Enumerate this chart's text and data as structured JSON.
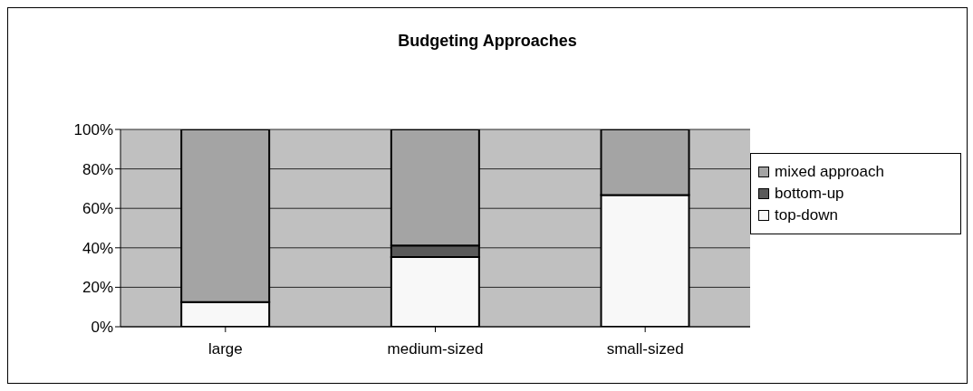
{
  "chart_data": {
    "type": "bar",
    "title": "Budgeting Approaches",
    "stacked": true,
    "categories": [
      "large",
      "medium-sized",
      "small-sized"
    ],
    "series": [
      {
        "name": "top-down",
        "color": "#f8f8f8",
        "values": [
          12.5,
          35.3,
          66.7
        ]
      },
      {
        "name": "bottom-up",
        "color": "#5a5a5a",
        "values": [
          0,
          5.9,
          0
        ]
      },
      {
        "name": "mixed approach",
        "color": "#a4a4a4",
        "values": [
          87.5,
          58.8,
          33.3
        ]
      }
    ],
    "ylim": [
      0,
      100
    ],
    "yticks": [
      {
        "value": 0,
        "label": "0%"
      },
      {
        "value": 20,
        "label": "20%"
      },
      {
        "value": 40,
        "label": "40%"
      },
      {
        "value": 60,
        "label": "60%"
      },
      {
        "value": 80,
        "label": "80%"
      },
      {
        "value": 100,
        "label": "100%"
      }
    ],
    "grid": "y",
    "legend": "right"
  }
}
